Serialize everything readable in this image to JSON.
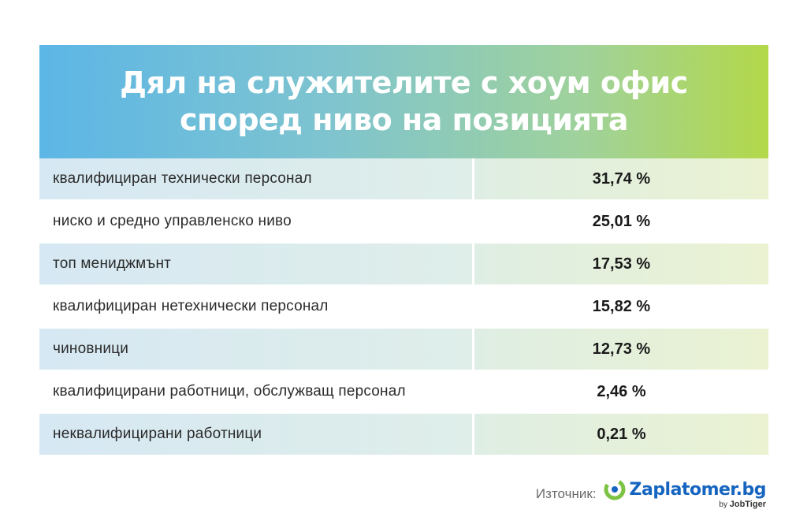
{
  "header": {
    "title_line1": "Дял на служителите с хоум офис",
    "title_line2": "според ниво на позицията"
  },
  "chart_data": {
    "type": "table",
    "title": "Дял на служителите с хоум офис според ниво на позицията",
    "rows": [
      {
        "label": "квалифициран технически персонал",
        "value": 31.74,
        "display": "31,74 %"
      },
      {
        "label": "ниско и средно управленско ниво",
        "value": 25.01,
        "display": "25,01 %"
      },
      {
        "label": "топ мениджмънт",
        "value": 17.53,
        "display": "17,53 %"
      },
      {
        "label": "квалифициран нетехнически персонал",
        "value": 15.82,
        "display": "15,82 %"
      },
      {
        "label": "чиновници",
        "value": 12.73,
        "display": "12,73 %"
      },
      {
        "label": "квалифицирани работници, обслужващ персонал",
        "value": 2.46,
        "display": "2,46 %"
      },
      {
        "label": "неквалифицирани работници",
        "value": 0.21,
        "display": "0,21 %"
      }
    ]
  },
  "footer": {
    "source_label": "Източник:",
    "brand_name": "Zaplatomer.bg",
    "brand_by": "by",
    "brand_owner": "JobTiger"
  },
  "colors": {
    "header_gradient_start": "#5cb6e6",
    "header_gradient_end": "#b3d84a",
    "brand_blue": "#1565c0",
    "brand_green": "#7cc243"
  }
}
